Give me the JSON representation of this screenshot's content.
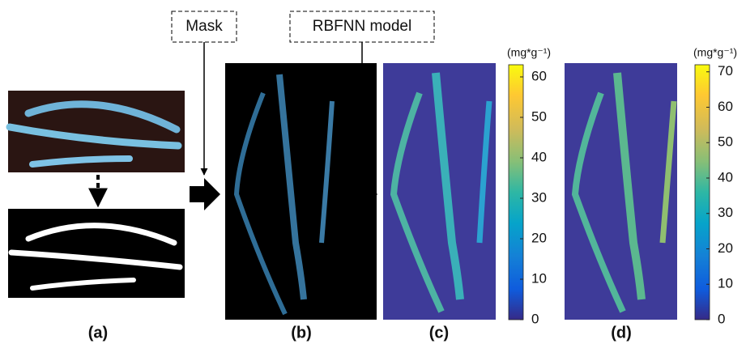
{
  "steps": [
    {
      "label": "Mask"
    },
    {
      "label": "RBFNN model"
    }
  ],
  "panels": [
    {
      "label": "(a)"
    },
    {
      "label": "(b)"
    },
    {
      "label": "(c)"
    },
    {
      "label": "(d)"
    }
  ],
  "colorbars": [
    {
      "unit": "(mg*g⁻¹)",
      "range": [
        0,
        63
      ],
      "ticks": [
        0,
        10,
        20,
        30,
        40,
        50,
        60
      ]
    },
    {
      "unit": "(mg*g⁻¹)",
      "range": [
        0,
        72
      ],
      "ticks": [
        0,
        10,
        20,
        30,
        40,
        50,
        60,
        70
      ]
    }
  ]
}
